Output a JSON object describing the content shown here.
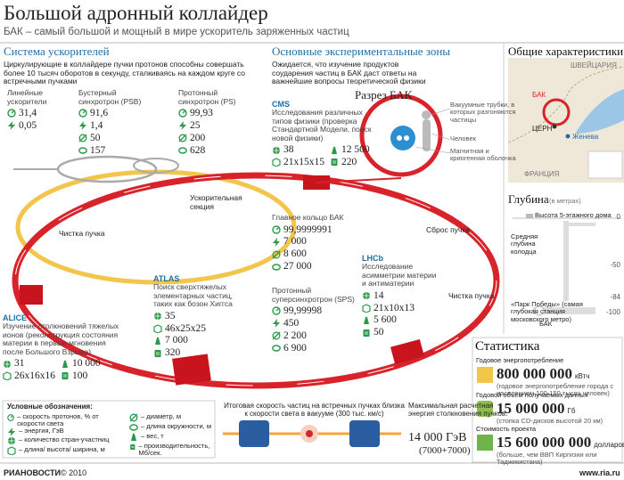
{
  "header": {
    "title": "Большой адронный коллайдер",
    "subtitle": "БАК – самый большой и мощный в мире ускоритель заряженных частиц"
  },
  "accelerators": {
    "title": "Система ускорителей",
    "description": "Циркулирующие в коллайдере пучки протонов способны совершать более 10 тысяч оборотов в секунду, сталкиваясь на каждом круге со встречными пучками",
    "items": [
      {
        "name": "Линейные ускорители",
        "values": [
          "31,4",
          "0,05"
        ]
      },
      {
        "name": "Бустерный синхротрон (PSB)",
        "values": [
          "91,6",
          "1,4",
          "50",
          "157"
        ]
      },
      {
        "name": "Протонный синхротрон (PS)",
        "values": [
          "99,93",
          "25",
          "200",
          "628"
        ]
      },
      {
        "name": "Протонный суперсинхротрон (SPS)",
        "values": [
          "99,99998",
          "450",
          "2 200",
          "6 900"
        ]
      },
      {
        "name": "Главное кольцо БАК",
        "values": [
          "99,9999991",
          "7 000",
          "8 600",
          "27 000"
        ]
      }
    ]
  },
  "ring_labels": [
    "Ускорительная секция",
    "Чистка пучка",
    "Чистка пучка",
    "Сброс пучка"
  ],
  "experiments": {
    "title": "Основные экспериментальные зоны",
    "description": "Ожидается, что изучение продуктов соударения частиц в БАК даст ответы на важнейшие вопросы теоретической физики",
    "items": [
      {
        "name": "CMS",
        "description": "Исследования различных типов физики (проверка Стандартной Модели, поиск новой физики)",
        "values": [
          "38",
          "12 500",
          "21x15x15",
          "220"
        ]
      },
      {
        "name": "ATLAS",
        "description": "Поиск сверхтяжелых элементарных частиц, таких как бозон Хиггса",
        "values": [
          "35",
          "46x25x25",
          "7 000",
          "320"
        ]
      },
      {
        "name": "ALICE",
        "description": "Изучение столкновений тяжелых ионов (реконструкция состояния материи в первые мгновения после Большого Взрыва)",
        "values": [
          "31",
          "10 000",
          "26x16x16",
          "100"
        ]
      },
      {
        "name": "LHCb",
        "description": "Исследование асимметрии материи и антиматерии",
        "values": [
          "14",
          "21x10x13",
          "5 600",
          "50"
        ]
      }
    ]
  },
  "cross_section": {
    "title": "Разрез БАК",
    "labels": [
      "Вакуумные трубки, в которых разгоняются частицы",
      "Человек",
      "Магнитная и криогенная оболочка"
    ]
  },
  "general": {
    "title": "Общие характеристики",
    "map_labels": [
      "ШВЕЙЦАРИЯ",
      "БАК",
      "ЦЕРН",
      "Женева",
      "ФРАНЦИЯ"
    ]
  },
  "depth": {
    "title": "Глубина",
    "unit": "(в метрах)",
    "labels": [
      "Высота 5-этажного дома",
      "Средняя глубина колодца",
      "«Парк Победы» (самая глубокая станция московского метро)",
      "БАК"
    ],
    "ticks": [
      0,
      -50,
      -84,
      -100
    ]
  },
  "legend": {
    "title": "Условные обозначения:",
    "items": [
      "– скорость протонов, % от скорости света",
      "– энергия, ГэВ",
      "– количество стран-участниц",
      "– длина/ высота/ ширина, м",
      "– диаметр, м",
      "– длина окружности, м",
      "– вес, т",
      "– производительность, Мб/сек."
    ]
  },
  "collision": {
    "speed_text": "Итоговая скорость частиц на встречных пучках близка к скорости света в вакууме (300 тыс. км/с)",
    "energy_label": "Максимальная расчетная энергия столкновения пучков:",
    "energy_value": "14 000 ГэВ",
    "energy_sum": "(7000+7000)"
  },
  "statistics": {
    "title": "Статистика",
    "items": [
      {
        "label": "Годовое энергопотребление",
        "value": "800 000 000",
        "unit": "кВтч",
        "note": "(годовое энергопотребление города с населением 100-150 тысяч человек)"
      },
      {
        "label": "Годовой объем получаемых данных",
        "value": "15 000 000",
        "unit": "Гб",
        "note": "(стопка CD-дисков высотой 20 км)"
      },
      {
        "label": "Стоимость проекта",
        "value": "15 600 000 000",
        "unit": "долларов",
        "note": "(больше, чем ВВП Киргизии или Таджикистана)"
      }
    ]
  },
  "footer": {
    "brand": "РИАНОВОСТИ",
    "copyright": "© 2010",
    "url": "www.ria.ru"
  }
}
